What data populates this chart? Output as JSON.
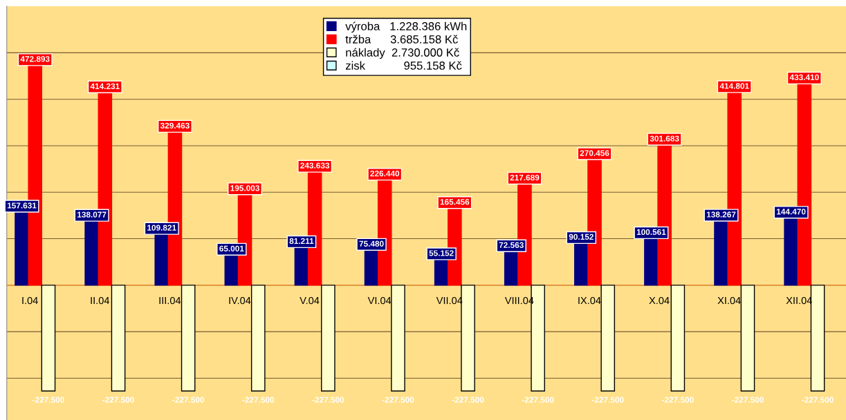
{
  "chart_data": {
    "type": "bar",
    "categories": [
      "I.04",
      "II.04",
      "III.04",
      "IV.04",
      "V.04",
      "VI.04",
      "VII.04",
      "VIII.04",
      "IX.04",
      "X.04",
      "XI.04",
      "XII.04"
    ],
    "series": [
      {
        "name": "výroba   1.228.386 kWh",
        "color": "#000080",
        "values": [
          157631,
          138077,
          109821,
          65001,
          81211,
          75480,
          55152,
          72563,
          90152,
          100561,
          138267,
          144470
        ],
        "value_labels": [
          "157.631",
          "138.077",
          "109.821",
          "65.001",
          "81.211",
          "75.480",
          "55.152",
          "72.563",
          "90.152",
          "100.561",
          "138.267",
          "144.470"
        ]
      },
      {
        "name": "tržba      3.685.158 Kč",
        "color": "#ff0000",
        "values": [
          472893,
          414231,
          329463,
          195003,
          243633,
          226440,
          165456,
          217689,
          270456,
          301683,
          414801,
          433410
        ],
        "value_labels": [
          "472.893",
          "414.231",
          "329.463",
          "195.003",
          "243.633",
          "226.440",
          "165.456",
          "217.689",
          "270.456",
          "301.683",
          "414.801",
          "433.410"
        ]
      },
      {
        "name": "náklady  2.730.000 Kč",
        "color": "#ffffcc",
        "values": [
          -227500,
          -227500,
          -227500,
          -227500,
          -227500,
          -227500,
          -227500,
          -227500,
          -227500,
          -227500,
          -227500,
          -227500
        ],
        "value_labels": [
          "-227.500",
          "-227.500",
          "-227.500",
          "-227.500",
          "-227.500",
          "-227.500",
          "-227.500",
          "-227.500",
          "-227.500",
          "-227.500",
          "-227.500",
          "-227.500"
        ]
      },
      {
        "name": "zisk            955.158 Kč",
        "color": "#ccffff",
        "values": [
          null,
          null,
          null,
          null,
          null,
          null,
          null,
          null,
          null,
          null,
          null,
          null
        ]
      }
    ],
    "ylim": [
      -290000,
      600000
    ],
    "yticks": [
      {
        "value": -200000,
        "label": null
      },
      {
        "value": -100000,
        "label": null
      },
      {
        "value": 0,
        "label": null
      },
      {
        "value": 100000,
        "label": null
      },
      {
        "value": 200000,
        "label": null
      },
      {
        "value": 300000,
        "label": null
      },
      {
        "value": 400000,
        "label": null
      },
      {
        "value": 500000,
        "label": null
      }
    ],
    "tick_labels": "x",
    "grid": "y",
    "legend": "top"
  }
}
